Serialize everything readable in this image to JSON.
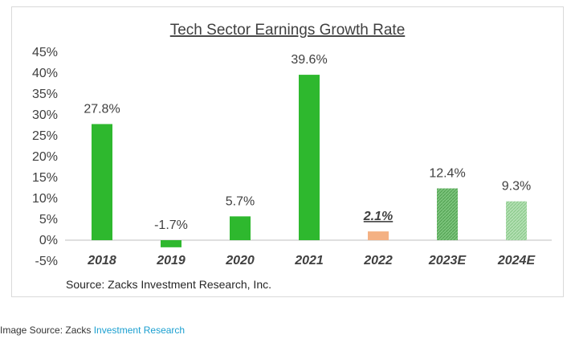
{
  "chart_data": {
    "type": "bar",
    "title": "Tech Sector Earnings Growth Rate",
    "categories": [
      "2018",
      "2019",
      "2020",
      "2021",
      "2022",
      "2023E",
      "2024E"
    ],
    "values": [
      27.8,
      -1.7,
      5.7,
      39.6,
      2.1,
      12.4,
      9.3
    ],
    "value_labels": [
      "27.8%",
      "-1.7%",
      "5.7%",
      "39.6%",
      "2.1%",
      "12.4%",
      "9.3%"
    ],
    "y_ticks": [
      -5,
      0,
      5,
      10,
      15,
      20,
      25,
      30,
      35,
      40,
      45
    ],
    "y_tick_labels": [
      "-5%",
      "0%",
      "5%",
      "10%",
      "15%",
      "20%",
      "25%",
      "30%",
      "35%",
      "40%",
      "45%"
    ],
    "ylim": [
      -5,
      45
    ],
    "xlabel": "",
    "ylabel": "",
    "grid": false,
    "legend": "none",
    "source_note": "Source: Zacks Investment Research, Inc.",
    "bar_styles": [
      "solid",
      "solid",
      "solid",
      "solid",
      "solid",
      "hatched",
      "hatched"
    ],
    "bar_colors": [
      "#2eb82e",
      "#2eb82e",
      "#2eb82e",
      "#2eb82e",
      "#f4b183",
      "#7cc47c",
      "#a9dca9"
    ],
    "emphasized_label_index": 4
  },
  "caption": {
    "prefix": "Image Source: Zacks ",
    "link_text": "Investment Research",
    "link_color": "#1a9fd0"
  }
}
